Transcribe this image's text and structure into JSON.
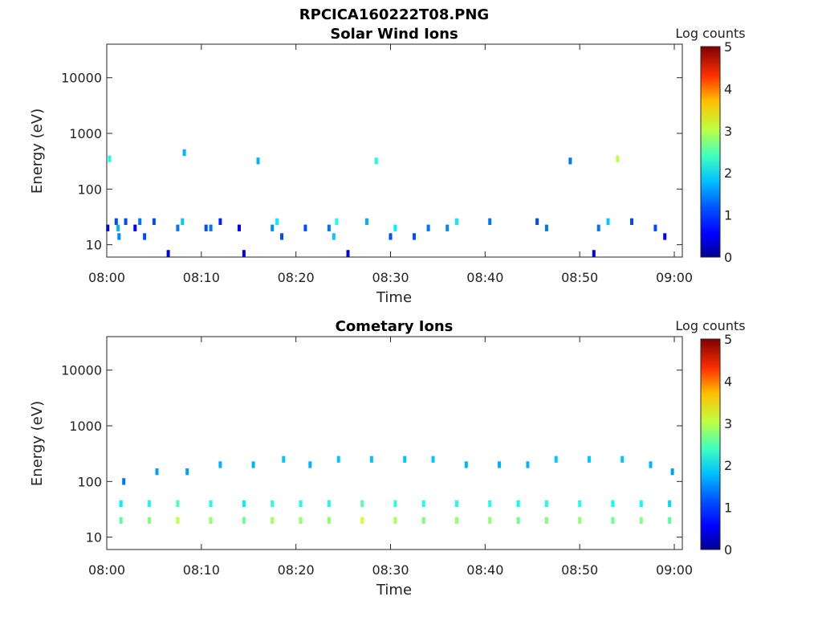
{
  "figure": {
    "title": "RPCICA160222T08.PNG"
  },
  "colors": {
    "colormap": [
      "#00008f",
      "#0000ff",
      "#0080ff",
      "#00ffff",
      "#80ff80",
      "#ffff00",
      "#ff8000",
      "#ff0000",
      "#800000"
    ]
  },
  "chart_data": [
    {
      "type": "heatmap",
      "title": "Solar Wind Ions",
      "xlabel": "Time",
      "ylabel": "Energy (eV)",
      "xlim": [
        "08:00",
        "09:00"
      ],
      "x_ticks": [
        "08:00",
        "08:10",
        "08:20",
        "08:30",
        "08:40",
        "08:50",
        "09:00"
      ],
      "y_scale": "log",
      "ylim": [
        6,
        40000
      ],
      "y_ticks": [
        {
          "value": 10,
          "label": "10"
        },
        {
          "value": 100,
          "label": "100"
        },
        {
          "value": 1000,
          "label": "1000"
        },
        {
          "value": 10000,
          "label": "10000"
        }
      ],
      "colorbar": {
        "label": "Log counts",
        "range": [
          0,
          5
        ],
        "ticks": [
          "0",
          "1",
          "2",
          "3",
          "4",
          "5"
        ]
      },
      "grid": false,
      "cells": [
        {
          "t": 0.1,
          "e": 20,
          "v": 0.5
        },
        {
          "t": 0.3,
          "e": 350,
          "v": 2.0
        },
        {
          "t": 1.0,
          "e": 26,
          "v": 1.0
        },
        {
          "t": 1.2,
          "e": 20,
          "v": 1.5
        },
        {
          "t": 1.3,
          "e": 14,
          "v": 1.3
        },
        {
          "t": 2.0,
          "e": 26,
          "v": 1.0
        },
        {
          "t": 3.0,
          "e": 20,
          "v": 0.5
        },
        {
          "t": 3.5,
          "e": 26,
          "v": 1.2
        },
        {
          "t": 4.0,
          "e": 14,
          "v": 1.0
        },
        {
          "t": 5.0,
          "e": 26,
          "v": 1.0
        },
        {
          "t": 6.5,
          "e": 7,
          "v": 0.5
        },
        {
          "t": 7.5,
          "e": 20,
          "v": 1.2
        },
        {
          "t": 8.0,
          "e": 26,
          "v": 1.6
        },
        {
          "t": 8.2,
          "e": 450,
          "v": 1.5
        },
        {
          "t": 10.5,
          "e": 20,
          "v": 1.0
        },
        {
          "t": 11.0,
          "e": 20,
          "v": 1.2
        },
        {
          "t": 12.0,
          "e": 26,
          "v": 0.8
        },
        {
          "t": 14.0,
          "e": 20,
          "v": 0.5
        },
        {
          "t": 14.5,
          "e": 7,
          "v": 0.5
        },
        {
          "t": 16.0,
          "e": 320,
          "v": 1.5
        },
        {
          "t": 17.5,
          "e": 20,
          "v": 1.3
        },
        {
          "t": 18.0,
          "e": 26,
          "v": 1.8
        },
        {
          "t": 18.5,
          "e": 14,
          "v": 1.0
        },
        {
          "t": 21.0,
          "e": 20,
          "v": 1.0
        },
        {
          "t": 23.5,
          "e": 20,
          "v": 1.2
        },
        {
          "t": 24.0,
          "e": 14,
          "v": 1.6
        },
        {
          "t": 24.3,
          "e": 26,
          "v": 2.0
        },
        {
          "t": 25.5,
          "e": 7,
          "v": 0.5
        },
        {
          "t": 27.5,
          "e": 26,
          "v": 1.5
        },
        {
          "t": 28.5,
          "e": 320,
          "v": 2.0
        },
        {
          "t": 30.0,
          "e": 14,
          "v": 1.0
        },
        {
          "t": 30.5,
          "e": 20,
          "v": 1.8
        },
        {
          "t": 32.5,
          "e": 14,
          "v": 1.0
        },
        {
          "t": 34.0,
          "e": 20,
          "v": 1.2
        },
        {
          "t": 36.0,
          "e": 20,
          "v": 1.3
        },
        {
          "t": 37.0,
          "e": 26,
          "v": 1.8
        },
        {
          "t": 40.5,
          "e": 26,
          "v": 1.2
        },
        {
          "t": 45.5,
          "e": 26,
          "v": 1.0
        },
        {
          "t": 46.5,
          "e": 20,
          "v": 1.2
        },
        {
          "t": 49.0,
          "e": 320,
          "v": 1.2
        },
        {
          "t": 51.5,
          "e": 7,
          "v": 0.5
        },
        {
          "t": 52.0,
          "e": 20,
          "v": 1.2
        },
        {
          "t": 53.0,
          "e": 26,
          "v": 1.6
        },
        {
          "t": 54.0,
          "e": 350,
          "v": 2.8
        },
        {
          "t": 55.5,
          "e": 26,
          "v": 1.0
        },
        {
          "t": 58.0,
          "e": 20,
          "v": 1.0
        },
        {
          "t": 59.0,
          "e": 14,
          "v": 0.5
        }
      ]
    },
    {
      "type": "heatmap",
      "title": "Cometary Ions",
      "xlabel": "Time",
      "ylabel": "Energy (eV)",
      "xlim": [
        "08:00",
        "09:00"
      ],
      "x_ticks": [
        "08:00",
        "08:10",
        "08:20",
        "08:30",
        "08:40",
        "08:50",
        "09:00"
      ],
      "y_scale": "log",
      "ylim": [
        6,
        40000
      ],
      "y_ticks": [
        {
          "value": 10,
          "label": "10"
        },
        {
          "value": 100,
          "label": "100"
        },
        {
          "value": 1000,
          "label": "1000"
        },
        {
          "value": 10000,
          "label": "10000"
        }
      ],
      "colorbar": {
        "label": "Log counts",
        "range": [
          0,
          5
        ],
        "ticks": [
          "0",
          "1",
          "2",
          "3",
          "4",
          "5"
        ]
      },
      "grid": false,
      "cells": [
        {
          "t": 1.5,
          "e": 20,
          "v": 2.3
        },
        {
          "t": 1.5,
          "e": 40,
          "v": 1.8
        },
        {
          "t": 1.8,
          "e": 100,
          "v": 1.2
        },
        {
          "t": 4.5,
          "e": 20,
          "v": 2.5
        },
        {
          "t": 4.5,
          "e": 40,
          "v": 2.0
        },
        {
          "t": 5.3,
          "e": 150,
          "v": 1.4
        },
        {
          "t": 7.5,
          "e": 20,
          "v": 2.8
        },
        {
          "t": 7.5,
          "e": 40,
          "v": 2.2
        },
        {
          "t": 8.5,
          "e": 150,
          "v": 1.4
        },
        {
          "t": 11.0,
          "e": 20,
          "v": 2.6
        },
        {
          "t": 11.0,
          "e": 40,
          "v": 2.0
        },
        {
          "t": 12.0,
          "e": 200,
          "v": 1.5
        },
        {
          "t": 14.5,
          "e": 20,
          "v": 2.4
        },
        {
          "t": 14.5,
          "e": 40,
          "v": 1.8
        },
        {
          "t": 15.5,
          "e": 200,
          "v": 1.5
        },
        {
          "t": 17.5,
          "e": 20,
          "v": 2.7
        },
        {
          "t": 17.5,
          "e": 40,
          "v": 2.1
        },
        {
          "t": 18.7,
          "e": 250,
          "v": 1.6
        },
        {
          "t": 20.5,
          "e": 20,
          "v": 2.6
        },
        {
          "t": 20.5,
          "e": 40,
          "v": 2.0
        },
        {
          "t": 21.5,
          "e": 200,
          "v": 1.5
        },
        {
          "t": 23.5,
          "e": 20,
          "v": 2.6
        },
        {
          "t": 23.5,
          "e": 40,
          "v": 2.0
        },
        {
          "t": 24.5,
          "e": 250,
          "v": 1.6
        },
        {
          "t": 27.0,
          "e": 20,
          "v": 2.9
        },
        {
          "t": 27.0,
          "e": 40,
          "v": 2.3
        },
        {
          "t": 28.0,
          "e": 250,
          "v": 1.6
        },
        {
          "t": 30.5,
          "e": 20,
          "v": 2.7
        },
        {
          "t": 30.5,
          "e": 40,
          "v": 2.1
        },
        {
          "t": 31.5,
          "e": 250,
          "v": 1.6
        },
        {
          "t": 33.5,
          "e": 20,
          "v": 2.5
        },
        {
          "t": 33.5,
          "e": 40,
          "v": 2.0
        },
        {
          "t": 34.5,
          "e": 250,
          "v": 1.6
        },
        {
          "t": 37.0,
          "e": 20,
          "v": 2.6
        },
        {
          "t": 37.0,
          "e": 40,
          "v": 2.0
        },
        {
          "t": 38.0,
          "e": 200,
          "v": 1.5
        },
        {
          "t": 40.5,
          "e": 20,
          "v": 2.6
        },
        {
          "t": 40.5,
          "e": 40,
          "v": 2.0
        },
        {
          "t": 41.5,
          "e": 200,
          "v": 1.5
        },
        {
          "t": 43.5,
          "e": 20,
          "v": 2.4
        },
        {
          "t": 43.5,
          "e": 40,
          "v": 1.9
        },
        {
          "t": 44.5,
          "e": 200,
          "v": 1.5
        },
        {
          "t": 46.5,
          "e": 20,
          "v": 2.5
        },
        {
          "t": 46.5,
          "e": 40,
          "v": 2.0
        },
        {
          "t": 47.5,
          "e": 250,
          "v": 1.6
        },
        {
          "t": 50.0,
          "e": 20,
          "v": 2.6
        },
        {
          "t": 50.0,
          "e": 40,
          "v": 2.0
        },
        {
          "t": 51.0,
          "e": 250,
          "v": 1.6
        },
        {
          "t": 53.5,
          "e": 20,
          "v": 2.4
        },
        {
          "t": 53.5,
          "e": 40,
          "v": 1.9
        },
        {
          "t": 54.5,
          "e": 250,
          "v": 1.6
        },
        {
          "t": 56.5,
          "e": 20,
          "v": 2.5
        },
        {
          "t": 56.5,
          "e": 40,
          "v": 1.9
        },
        {
          "t": 57.5,
          "e": 200,
          "v": 1.5
        },
        {
          "t": 59.5,
          "e": 20,
          "v": 2.3
        },
        {
          "t": 59.5,
          "e": 40,
          "v": 1.7
        },
        {
          "t": 59.8,
          "e": 150,
          "v": 1.4
        }
      ]
    }
  ]
}
